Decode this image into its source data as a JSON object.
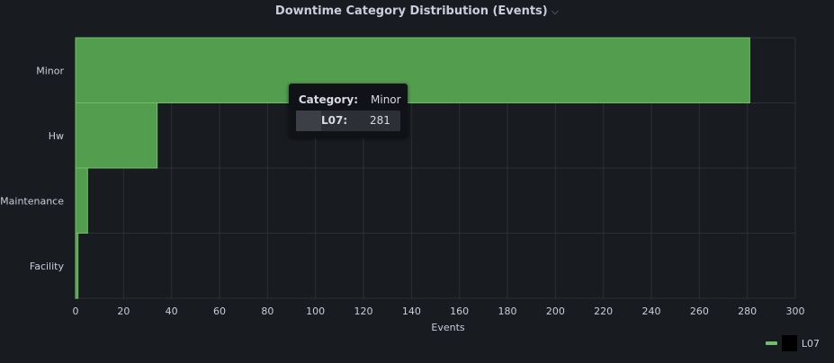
{
  "panel": {
    "title": "Downtime Category Distribution (Events)",
    "caret": "⌵"
  },
  "chart_data": {
    "type": "bar",
    "orientation": "horizontal",
    "categories": [
      "Minor",
      "Hw",
      "Maintenance",
      "Facility"
    ],
    "series": [
      {
        "name": "L07",
        "values": [
          281,
          34,
          5,
          1
        ],
        "color": "#73bf69"
      }
    ],
    "xlabel": "Events",
    "ylabel": "",
    "xlim": [
      0,
      300
    ],
    "xticks": [
      0,
      20,
      40,
      60,
      80,
      100,
      120,
      140,
      160,
      180,
      200,
      220,
      240,
      260,
      280,
      300
    ],
    "grid": true,
    "legend_position": "bottom-right"
  },
  "tooltip": {
    "header_key": "Category:",
    "header_value": "Minor",
    "row_key": "L07:",
    "row_value": "281"
  },
  "legend": {
    "label": "L07",
    "color": "#73bf69"
  },
  "theme": {
    "background": "#181b1f",
    "bar_fill": "#539e4e",
    "bar_edge": "#73bf69",
    "grid": "#2c2f35",
    "text": "#ccccdc"
  }
}
